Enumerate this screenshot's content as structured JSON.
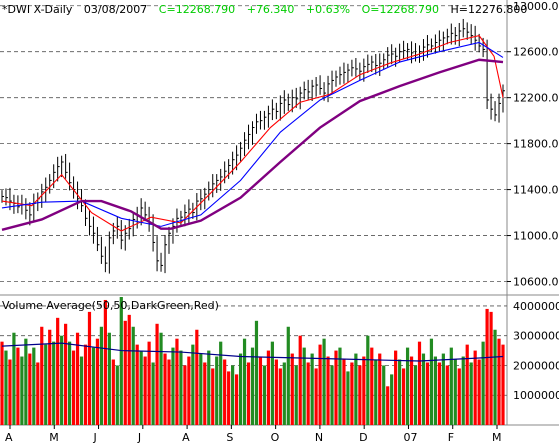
{
  "header": {
    "symbol": "*DWI X-Daily",
    "date": "03/08/2007",
    "close": "C=12268.790",
    "change": "+76.340",
    "pct": "+0.63%",
    "open": "O=12268.790",
    "high": "H=12276.800"
  },
  "volume_label": "Volume Average(50,50,DarkGreen,Red)",
  "colors": {
    "up_volume": "#228B22",
    "down_volume": "#FF0000",
    "header_green": "#00CC00",
    "price_bars": "#000000",
    "ma_fast": "#FF0000",
    "ma_mid": "#0000FF",
    "ma_slow": "#800080",
    "volume_avg": "#00008B"
  },
  "chart_data": [
    {
      "type": "line",
      "title": "*DWI X-Daily 03/08/2007",
      "ylim": [
        10500,
        13050
      ],
      "yticks": [
        "13000.00",
        "12600.00",
        "12200.00",
        "11800.00",
        "11400.00",
        "11000.00",
        "10600.00"
      ],
      "xticks": [
        "A",
        "M",
        "J",
        "J",
        "A",
        "S",
        "O",
        "N",
        "D",
        "07",
        "F",
        "M"
      ],
      "grid": true,
      "series": [
        {
          "name": "price",
          "style": "ohlc-bars",
          "x": [
            0,
            4,
            8,
            12,
            16,
            20,
            24,
            28,
            32,
            36,
            40,
            44,
            48,
            52,
            56,
            60,
            64,
            68,
            72,
            76,
            80,
            84,
            88,
            92,
            96,
            100,
            104,
            108,
            112,
            116,
            120,
            124,
            128,
            132,
            136,
            140,
            144,
            148,
            152,
            156,
            160,
            164,
            168,
            172,
            176,
            180,
            184,
            188,
            192,
            196,
            200,
            204,
            208,
            212,
            216,
            220,
            224,
            228,
            232,
            236,
            240,
            244,
            248,
            252,
            256,
            260,
            264,
            268,
            272,
            276,
            280,
            284,
            288,
            292,
            296,
            300,
            304,
            308,
            312,
            316,
            320,
            324,
            328,
            332,
            336,
            340,
            344,
            348,
            352,
            356,
            360,
            364,
            368,
            372,
            376,
            380,
            384,
            388,
            392,
            396,
            400,
            404,
            408,
            412,
            416,
            420,
            424,
            428,
            432,
            436,
            440,
            444,
            448,
            452,
            456,
            460,
            464,
            468,
            472,
            476,
            480,
            484,
            488,
            492,
            496,
            500,
            504
          ],
          "values": [
            11340,
            11330,
            11300,
            11280,
            11250,
            11270,
            11220,
            11180,
            11280,
            11320,
            11380,
            11420,
            11480,
            11550,
            11600,
            11640,
            11550,
            11460,
            11400,
            11320,
            11260,
            11150,
            11080,
            11020,
            10920,
            10820,
            10760,
            10980,
            11040,
            11080,
            10960,
            11020,
            11060,
            11140,
            11180,
            11240,
            11180,
            11100,
            10940,
            10780,
            10740,
            10920,
            11020,
            11080,
            11150,
            11160,
            11200,
            11230,
            11200,
            11300,
            11320,
            11360,
            11400,
            11450,
            11480,
            11510,
            11560,
            11610,
            11660,
            11700,
            11760,
            11830,
            11880,
            11940,
            11990,
            12000,
            12030,
            12060,
            12100,
            12080,
            12150,
            12180,
            12140,
            12200,
            12190,
            12240,
            12270,
            12250,
            12300,
            12310,
            12280,
            12240,
            12320,
            12350,
            12380,
            12400,
            12420,
            12440,
            12460,
            12450,
            12430,
            12470,
            12490,
            12510,
            12480,
            12500,
            12530,
            12570,
            12580,
            12560,
            12600,
            12610,
            12620,
            12590,
            12570,
            12600,
            12640,
            12660,
            12650,
            12680,
            12700,
            12720,
            12730,
            12760,
            12740,
            12780,
            12800,
            12770,
            12740,
            12700,
            12650,
            12620,
            12180,
            12100,
            12050,
            12150,
            12260
          ]
        },
        {
          "name": "ma-fast",
          "style": "line",
          "color": "#FF0000",
          "x": [
            0,
            30,
            60,
            90,
            120,
            150,
            180,
            210,
            240,
            270,
            300,
            330,
            360,
            390,
            420,
            450,
            480,
            495,
            504
          ],
          "values": [
            11300,
            11260,
            11530,
            11200,
            11040,
            11160,
            11110,
            11370,
            11640,
            11940,
            12160,
            12230,
            12400,
            12500,
            12580,
            12680,
            12740,
            12560,
            12200
          ]
        },
        {
          "name": "ma-mid",
          "style": "line",
          "color": "#0000FF",
          "x": [
            0,
            40,
            80,
            120,
            160,
            200,
            240,
            280,
            320,
            360,
            400,
            440,
            480,
            504
          ],
          "values": [
            11240,
            11290,
            11300,
            11150,
            11080,
            11180,
            11480,
            11900,
            12180,
            12350,
            12510,
            12600,
            12680,
            12550
          ]
        },
        {
          "name": "ma-slow",
          "style": "line",
          "color": "#800080",
          "x": [
            0,
            40,
            80,
            100,
            130,
            160,
            170,
            200,
            240,
            280,
            320,
            360,
            400,
            440,
            480,
            504
          ],
          "values": [
            11050,
            11140,
            11300,
            11300,
            11210,
            11060,
            11060,
            11130,
            11330,
            11640,
            11940,
            12170,
            12300,
            12420,
            12530,
            12510
          ]
        }
      ]
    },
    {
      "type": "bar",
      "title": "Volume Average(50,50,DarkGreen,Red)",
      "ylim": [
        0,
        4300000
      ],
      "yticks": [
        "4000000",
        "3000000",
        "2000000",
        "1000000"
      ],
      "grid": true,
      "x": [
        0,
        4,
        8,
        12,
        16,
        20,
        24,
        28,
        32,
        36,
        40,
        44,
        48,
        52,
        56,
        60,
        64,
        68,
        72,
        76,
        80,
        84,
        88,
        92,
        96,
        100,
        104,
        108,
        112,
        116,
        120,
        124,
        128,
        132,
        136,
        140,
        144,
        148,
        152,
        156,
        160,
        164,
        168,
        172,
        176,
        180,
        184,
        188,
        192,
        196,
        200,
        204,
        208,
        212,
        216,
        220,
        224,
        228,
        232,
        236,
        240,
        244,
        248,
        252,
        256,
        260,
        264,
        268,
        272,
        276,
        280,
        284,
        288,
        292,
        296,
        300,
        304,
        308,
        312,
        316,
        320,
        324,
        328,
        332,
        336,
        340,
        344,
        348,
        352,
        356,
        360,
        364,
        368,
        372,
        376,
        380,
        384,
        388,
        392,
        396,
        400,
        404,
        408,
        412,
        416,
        420,
        424,
        428,
        432,
        436,
        440,
        444,
        448,
        452,
        456,
        460,
        464,
        468,
        472,
        476,
        480,
        484,
        488,
        492,
        496,
        500,
        504
      ],
      "values": [
        2800000,
        2500000,
        2200000,
        3100000,
        2600000,
        2300000,
        2900000,
        2400000,
        2600000,
        2100000,
        3300000,
        2700000,
        3200000,
        2800000,
        3600000,
        3000000,
        3400000,
        2800000,
        2500000,
        3100000,
        2300000,
        2700000,
        3800000,
        2600000,
        2900000,
        3300000,
        4200000,
        3100000,
        2200000,
        2000000,
        4300000,
        3500000,
        3700000,
        3300000,
        2700000,
        2500000,
        2300000,
        2800000,
        2100000,
        3400000,
        3100000,
        2400000,
        2200000,
        2600000,
        2900000,
        2500000,
        2000000,
        2300000,
        2700000,
        3200000,
        2400000,
        2100000,
        2500000,
        1900000,
        2300000,
        2800000,
        2200000,
        1800000,
        2000000,
        1700000,
        2400000,
        2900000,
        2100000,
        2600000,
        3500000,
        2300000,
        2000000,
        2500000,
        2800000,
        2200000,
        1900000,
        2100000,
        3300000,
        2400000,
        2000000,
        3000000,
        2600000,
        2100000,
        2400000,
        1900000,
        2700000,
        2900000,
        2300000,
        2000000,
        2500000,
        2600000,
        2200000,
        1800000,
        2100000,
        2400000,
        2000000,
        2300000,
        3000000,
        2600000,
        2200000,
        2400000,
        2000000,
        1300000,
        1700000,
        2500000,
        2200000,
        1900000,
        2600000,
        2300000,
        2000000,
        2800000,
        2400000,
        2100000,
        2900000,
        2300000,
        2100000,
        2400000,
        2000000,
        2600000,
        2200000,
        1900000,
        2300000,
        2700000,
        2100000,
        2500000,
        2200000,
        2800000,
        3900000,
        3800000,
        3200000,
        2900000,
        2700000
      ],
      "directions": [
        "down",
        "up",
        "down",
        "up",
        "down",
        "up",
        "up",
        "down",
        "up",
        "down",
        "down",
        "up",
        "down",
        "up",
        "down",
        "up",
        "down",
        "up",
        "down",
        "down",
        "up",
        "down",
        "down",
        "up",
        "down",
        "up",
        "down",
        "up",
        "down",
        "up",
        "up",
        "down",
        "down",
        "up",
        "down",
        "up",
        "down",
        "down",
        "up",
        "down",
        "up",
        "down",
        "down",
        "up",
        "down",
        "up",
        "down",
        "down",
        "up",
        "down",
        "up",
        "down",
        "up",
        "down",
        "up",
        "up",
        "down",
        "down",
        "up",
        "down",
        "up",
        "up",
        "down",
        "up",
        "up",
        "down",
        "up",
        "down",
        "up",
        "down",
        "down",
        "up",
        "up",
        "down",
        "up",
        "down",
        "up",
        "down",
        "up",
        "down",
        "down",
        "up",
        "down",
        "up",
        "down",
        "up",
        "down",
        "up",
        "down",
        "up",
        "down",
        "down",
        "up",
        "down",
        "up",
        "down",
        "up",
        "down",
        "up",
        "down",
        "up",
        "down",
        "up",
        "down",
        "up",
        "down",
        "up",
        "down",
        "up",
        "up",
        "down",
        "up",
        "down",
        "up",
        "up",
        "down",
        "up",
        "down",
        "up",
        "down",
        "down",
        "up",
        "down",
        "down",
        "up",
        "down",
        "down"
      ],
      "series": [
        {
          "name": "volume-average",
          "style": "line",
          "color": "#00008B",
          "x": [
            0,
            60,
            120,
            180,
            240,
            300,
            360,
            420,
            480,
            504
          ],
          "values": [
            2650000,
            2750000,
            2500000,
            2450000,
            2300000,
            2250000,
            2200000,
            2150000,
            2250000,
            2300000
          ]
        }
      ]
    }
  ]
}
